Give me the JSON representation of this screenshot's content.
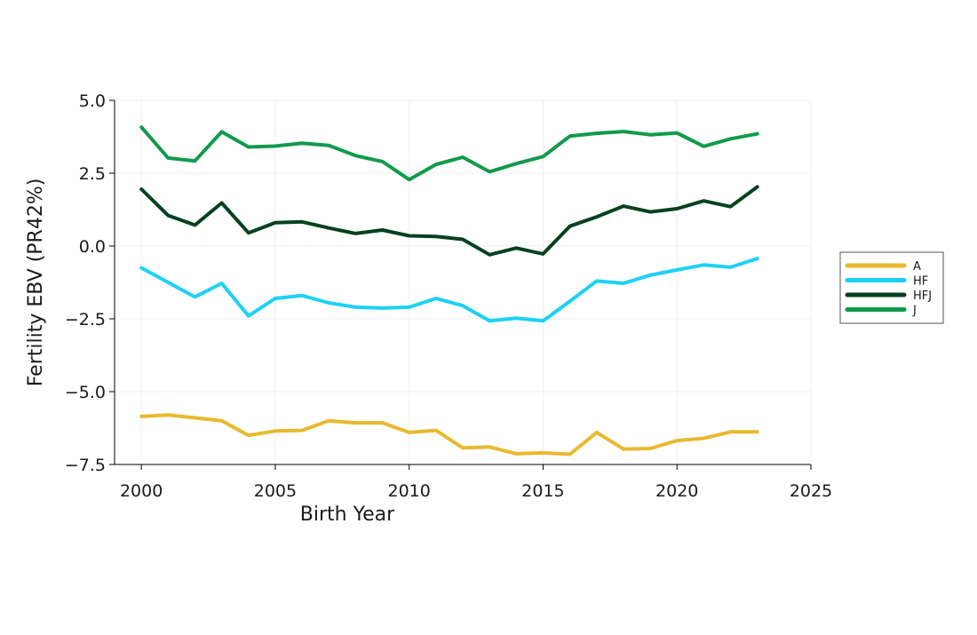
{
  "chart_data": {
    "type": "line",
    "title": "",
    "xlabel": "Birth Year",
    "ylabel": "Fertility EBV (PR42%)",
    "xlim": [
      1999,
      2025
    ],
    "ylim": [
      -7.5,
      5.0
    ],
    "xticks": [
      2000,
      2005,
      2010,
      2015,
      2020,
      2025
    ],
    "yticks": [
      5.0,
      2.5,
      0.0,
      -2.5,
      -5.0,
      -7.5
    ],
    "ytick_labels": [
      "5.0",
      "2.5",
      "0.0",
      "−2.5",
      "−5.0",
      "−7.5"
    ],
    "grid": true,
    "legend_position": "right",
    "x": [
      2000,
      2001,
      2002,
      2003,
      2004,
      2005,
      2006,
      2007,
      2008,
      2009,
      2010,
      2011,
      2012,
      2013,
      2014,
      2015,
      2016,
      2017,
      2018,
      2019,
      2020,
      2021,
      2022,
      2023
    ],
    "series": [
      {
        "name": "A",
        "color": "#E8B92F",
        "values": [
          -5.85,
          -5.8,
          -5.9,
          -6.0,
          -6.5,
          -6.35,
          -6.33,
          -6.0,
          -6.07,
          -6.07,
          -6.4,
          -6.33,
          -6.93,
          -6.9,
          -7.13,
          -7.1,
          -7.15,
          -6.4,
          -6.97,
          -6.95,
          -6.68,
          -6.6,
          -6.38,
          -6.38
        ]
      },
      {
        "name": "HF",
        "color": "#1CD1F5",
        "values": [
          -0.75,
          -1.25,
          -1.75,
          -1.28,
          -2.4,
          -1.8,
          -1.7,
          -1.95,
          -2.1,
          -2.13,
          -2.1,
          -1.8,
          -2.05,
          -2.57,
          -2.48,
          -2.57,
          -1.9,
          -1.2,
          -1.28,
          -1.0,
          -0.82,
          -0.65,
          -0.73,
          -0.43
        ]
      },
      {
        "name": "HFJ",
        "color": "#05411F",
        "values": [
          1.95,
          1.05,
          0.72,
          1.48,
          0.45,
          0.8,
          0.83,
          0.62,
          0.43,
          0.55,
          0.35,
          0.33,
          0.23,
          -0.3,
          -0.07,
          -0.27,
          0.68,
          1.0,
          1.37,
          1.17,
          1.28,
          1.55,
          1.35,
          2.03
        ]
      },
      {
        "name": "J",
        "color": "#119A4B",
        "values": [
          4.08,
          3.02,
          2.92,
          3.92,
          3.4,
          3.43,
          3.53,
          3.45,
          3.1,
          2.9,
          2.28,
          2.8,
          3.05,
          2.55,
          2.83,
          3.07,
          3.77,
          3.87,
          3.93,
          3.82,
          3.88,
          3.42,
          3.68,
          3.85
        ]
      }
    ]
  }
}
